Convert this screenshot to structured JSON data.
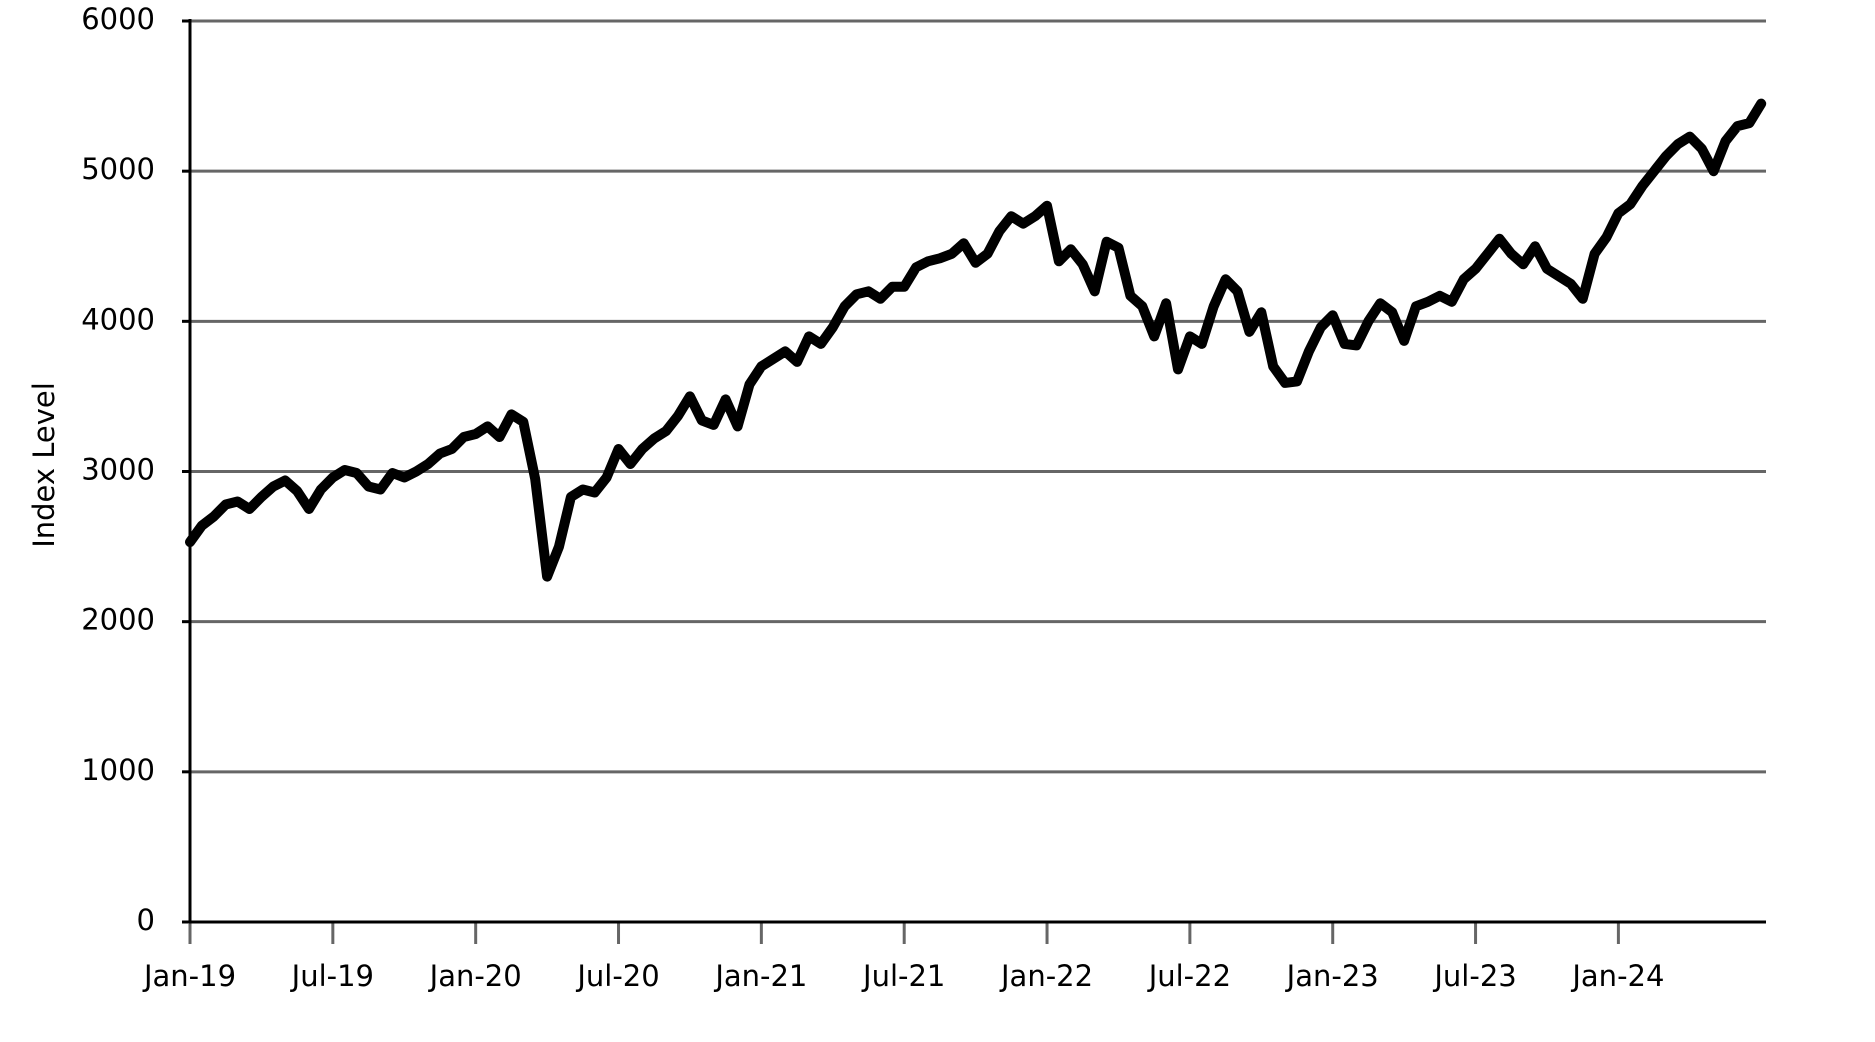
{
  "chart_data": {
    "type": "line",
    "y_label": "Index Level",
    "x": [
      0,
      0.5,
      1,
      1.5,
      2,
      2.5,
      3,
      3.5,
      4,
      4.5,
      5,
      5.5,
      6,
      6.5,
      7,
      7.5,
      8,
      8.5,
      9,
      9.5,
      10,
      10.5,
      11,
      11.5,
      12,
      12.5,
      13,
      13.5,
      14,
      14.5,
      15,
      15.5,
      16,
      16.5,
      17,
      17.5,
      18,
      18.5,
      19,
      19.5,
      20,
      20.5,
      21,
      21.5,
      22,
      22.5,
      23,
      23.5,
      24,
      24.5,
      25,
      25.5,
      26,
      26.5,
      27,
      27.5,
      28,
      28.5,
      29,
      29.5,
      30,
      30.5,
      31,
      31.5,
      32,
      32.5,
      33,
      33.5,
      34,
      34.5,
      35,
      35.5,
      36,
      36.5,
      37,
      37.5,
      38,
      38.5,
      39,
      39.5,
      40,
      40.5,
      41,
      41.5,
      42,
      42.5,
      43,
      43.5,
      44,
      44.5,
      45,
      45.5,
      46,
      46.5,
      47,
      47.5,
      48,
      48.5,
      49,
      49.5,
      50,
      50.5,
      51,
      51.5,
      52,
      52.5,
      53,
      53.5,
      54,
      54.5,
      55,
      55.5,
      56,
      56.5,
      57,
      57.5,
      58,
      58.5,
      59,
      59.5,
      60,
      60.5,
      61,
      61.5,
      62,
      62.5,
      63,
      63.5,
      64,
      64.5,
      65,
      65.5,
      66
    ],
    "series": [
      {
        "color": "#000000",
        "values": [
          2530,
          2640,
          2700,
          2780,
          2800,
          2750,
          2830,
          2900,
          2940,
          2870,
          2750,
          2880,
          2960,
          3010,
          2990,
          2900,
          2880,
          2990,
          2960,
          3000,
          3050,
          3120,
          3150,
          3230,
          3250,
          3300,
          3230,
          3380,
          3330,
          2950,
          2300,
          2500,
          2830,
          2880,
          2860,
          2960,
          3150,
          3050,
          3150,
          3220,
          3270,
          3370,
          3500,
          3340,
          3310,
          3480,
          3300,
          3580,
          3700,
          3750,
          3800,
          3730,
          3900,
          3850,
          3960,
          4100,
          4180,
          4200,
          4150,
          4230,
          4230,
          4360,
          4400,
          4420,
          4450,
          4520,
          4390,
          4450,
          4600,
          4700,
          4650,
          4700,
          4770,
          4400,
          4480,
          4380,
          4200,
          4530,
          4490,
          4170,
          4100,
          3900,
          4120,
          3680,
          3900,
          3850,
          4100,
          4280,
          4200,
          3930,
          4060,
          3700,
          3590,
          3600,
          3800,
          3960,
          4040,
          3850,
          3840,
          4000,
          4120,
          4060,
          3870,
          4100,
          4130,
          4170,
          4130,
          4280,
          4350,
          4450,
          4550,
          4450,
          4380,
          4500,
          4350,
          4300,
          4250,
          4150,
          4450,
          4560,
          4720,
          4780,
          4900,
          5000,
          5100,
          5180,
          5230,
          5150,
          5000,
          5200,
          5300,
          5320,
          5450
        ]
      }
    ],
    "xlim": [
      0,
      66.2
    ],
    "xticks": [
      {
        "value": 0,
        "label": "Jan-19"
      },
      {
        "value": 6,
        "label": "Jul-19"
      },
      {
        "value": 12,
        "label": "Jan-20"
      },
      {
        "value": 18,
        "label": "Jul-20"
      },
      {
        "value": 24,
        "label": "Jan-21"
      },
      {
        "value": 30,
        "label": "Jul-21"
      },
      {
        "value": 36,
        "label": "Jan-22"
      },
      {
        "value": 42,
        "label": "Jul-22"
      },
      {
        "value": 48,
        "label": "Jan-23"
      },
      {
        "value": 54,
        "label": "Jul-23"
      },
      {
        "value": 60,
        "label": "Jan-24"
      }
    ],
    "ylim": [
      0,
      6000
    ],
    "yticks": [
      0,
      1000,
      2000,
      3000,
      4000,
      5000,
      6000
    ],
    "grid": true
  }
}
